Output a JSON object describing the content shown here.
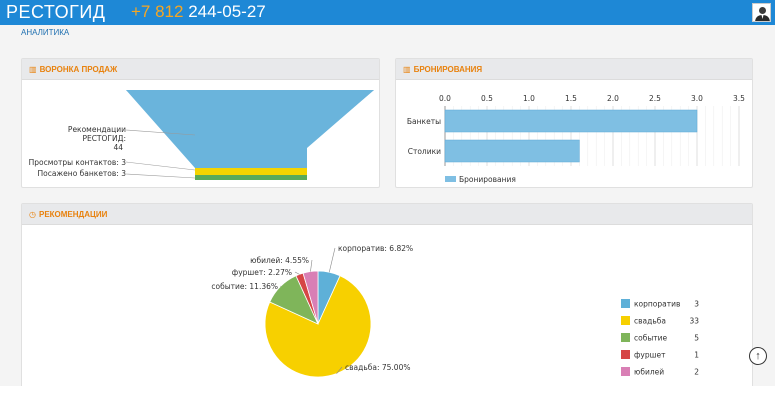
{
  "header": {
    "brand": "РЕСТОГИД",
    "phone_code": "+7 812",
    "phone_number": "244-05-27"
  },
  "breadcrumb": "АНАЛИТИКА",
  "funnel": {
    "title": "ВОРОНКА ПРОДАЖ",
    "icon": "bar-chart-icon",
    "labels": {
      "rec_line1": "Рекомендации",
      "rec_line2": "РЕСТОГИД:",
      "rec_line3": "44",
      "views": "Просмотры контактов: 3",
      "seated": "Посажено банкетов: 3"
    },
    "colors": {
      "rec": "#6ab4dc",
      "views": "#f5d400",
      "seated": "#5aaa5a"
    }
  },
  "bookings": {
    "title": "БРОНИРОВАНИЯ",
    "icon": "bar-chart-icon",
    "legend": "Бронирования",
    "color": "#7fbfe3"
  },
  "recommendations": {
    "title": "РЕКОМЕНДАЦИИ",
    "icon": "clock-icon"
  },
  "chart_data": [
    {
      "type": "bar",
      "orientation": "horizontal",
      "categories": [
        "Банкеты",
        "Столики"
      ],
      "values": [
        3,
        1.6
      ],
      "xlim": [
        0,
        3.5
      ],
      "x_ticks": [
        "0.0",
        "0.5",
        "1.0",
        "1.5",
        "2.0",
        "2.5",
        "3.0",
        "3.5"
      ],
      "series": [
        {
          "name": "Бронирования",
          "values": [
            3,
            1.6
          ]
        }
      ],
      "legend": "bottom-left",
      "grid": true
    },
    {
      "type": "pie",
      "labels": [
        "корпоратив",
        "свадьба",
        "событие",
        "фуршет",
        "юбилей"
      ],
      "values": [
        3,
        33,
        5,
        1,
        2
      ],
      "slice_labels": [
        "корпоратив: 6.82%",
        "свадьба: 75.00%",
        "событие: 11.36%",
        "фуршет: 2.27%",
        "юбилей: 4.55%"
      ],
      "value_labels": [
        "3",
        "33",
        "5",
        "1",
        "2"
      ],
      "colors": [
        "#5eb0d8",
        "#f7d000",
        "#7fb55a",
        "#d64545",
        "#d97fb5"
      ],
      "legend": "right"
    }
  ]
}
